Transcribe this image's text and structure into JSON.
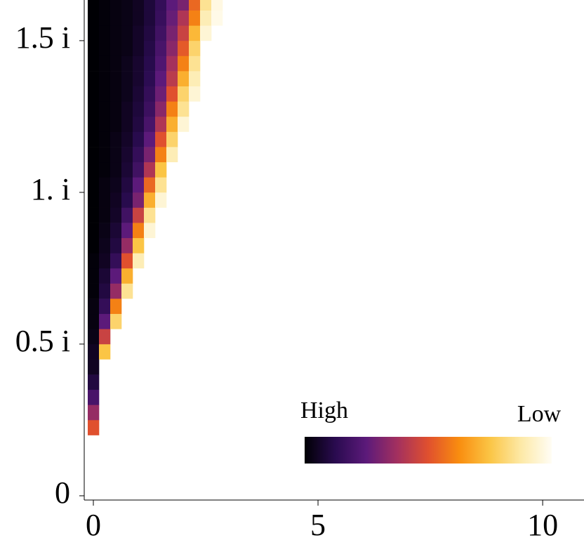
{
  "chart_data": {
    "type": "heatmap",
    "xlim": [
      -0.203,
      10.92
    ],
    "ylim": [
      -0.014,
      1.634
    ],
    "xticks": [
      0,
      5,
      10
    ],
    "yticks": [
      0,
      {
        "value": 0.5,
        "label": "0.5 i"
      },
      {
        "value": 1,
        "label": "1. i"
      },
      {
        "value": 1.5,
        "label": "1.5 i"
      }
    ],
    "x": [
      0,
      0.25,
      0.5,
      0.75,
      1,
      1.25,
      1.5,
      1.75,
      2,
      2.25,
      2.5,
      2.75
    ],
    "cell_width": 0.25,
    "cell_height": 0.05,
    "rows": [
      {
        "y": 0.225,
        "values": [
          0.5
        ]
      },
      {
        "y": 0.275,
        "values": [
          0.35
        ]
      },
      {
        "y": 0.325,
        "values": [
          0.2
        ]
      },
      {
        "y": 0.375,
        "values": [
          0.1
        ]
      },
      {
        "y": 0.425,
        "values": [
          0.05
        ]
      },
      {
        "y": 0.475,
        "values": [
          0.05,
          0.75
        ]
      },
      {
        "y": 0.525,
        "values": [
          0.03,
          0.45
        ]
      },
      {
        "y": 0.575,
        "values": [
          0.02,
          0.25,
          0.8
        ]
      },
      {
        "y": 0.625,
        "values": [
          0.02,
          0.15,
          0.6
        ]
      },
      {
        "y": 0.675,
        "values": [
          0.01,
          0.1,
          0.35,
          0.85
        ]
      },
      {
        "y": 0.725,
        "values": [
          0.01,
          0.08,
          0.25,
          0.7
        ]
      },
      {
        "y": 0.775,
        "values": [
          0.01,
          0.05,
          0.15,
          0.5,
          0.9
        ]
      },
      {
        "y": 0.825,
        "values": [
          0,
          0.04,
          0.1,
          0.35,
          0.75
        ]
      },
      {
        "y": 0.875,
        "values": [
          0,
          0.03,
          0.08,
          0.25,
          0.6,
          0.95
        ]
      },
      {
        "y": 0.925,
        "values": [
          0,
          0.02,
          0.06,
          0.18,
          0.45,
          0.85
        ]
      },
      {
        "y": 0.975,
        "values": [
          0,
          0.02,
          0.05,
          0.12,
          0.3,
          0.7,
          0.95
        ]
      },
      {
        "y": 1.025,
        "values": [
          0,
          0.02,
          0.04,
          0.1,
          0.25,
          0.55,
          0.85
        ]
      },
      {
        "y": 1.075,
        "values": [
          0,
          0.01,
          0.03,
          0.08,
          0.18,
          0.4,
          0.75
        ]
      },
      {
        "y": 1.125,
        "values": [
          0,
          0.01,
          0.03,
          0.07,
          0.15,
          0.3,
          0.6,
          0.9
        ]
      },
      {
        "y": 1.175,
        "values": [
          0,
          0.01,
          0.03,
          0.06,
          0.12,
          0.25,
          0.5,
          0.8
        ]
      },
      {
        "y": 1.225,
        "values": [
          0,
          0.01,
          0.02,
          0.05,
          0.1,
          0.2,
          0.4,
          0.7,
          0.95
        ]
      },
      {
        "y": 1.275,
        "values": [
          0,
          0.01,
          0.02,
          0.05,
          0.09,
          0.17,
          0.33,
          0.6,
          0.85
        ]
      },
      {
        "y": 1.325,
        "values": [
          0,
          0.01,
          0.02,
          0.04,
          0.08,
          0.15,
          0.28,
          0.5,
          0.8,
          0.95
        ]
      },
      {
        "y": 1.375,
        "values": [
          0,
          0.01,
          0.02,
          0.04,
          0.07,
          0.13,
          0.25,
          0.42,
          0.7,
          0.9
        ]
      },
      {
        "y": 1.425,
        "values": [
          0,
          0.01,
          0.02,
          0.04,
          0.07,
          0.12,
          0.22,
          0.38,
          0.6,
          0.85
        ]
      },
      {
        "y": 1.475,
        "values": [
          0,
          0.01,
          0.02,
          0.03,
          0.06,
          0.11,
          0.2,
          0.33,
          0.52,
          0.8
        ]
      },
      {
        "y": 1.525,
        "values": [
          0,
          0.01,
          0.02,
          0.03,
          0.06,
          0.1,
          0.18,
          0.3,
          0.45,
          0.72,
          0.95
        ]
      },
      {
        "y": 1.575,
        "values": [
          0,
          0.01,
          0.02,
          0.03,
          0.05,
          0.09,
          0.16,
          0.27,
          0.4,
          0.6,
          0.9,
          0.98
        ]
      },
      {
        "y": 1.625,
        "values": [
          0,
          0.01,
          0.02,
          0.03,
          0.05,
          0.09,
          0.15,
          0.25,
          0.3,
          0.55,
          0.85,
          0.97
        ]
      }
    ],
    "colorbar": {
      "high_label": "High",
      "low_label": "Low",
      "colors": [
        "#000004",
        "#2a0b50",
        "#5c1a7a",
        "#a3305f",
        "#e0502e",
        "#f98d0f",
        "#fbc545",
        "#fde9a6",
        "#fffdf5"
      ]
    }
  }
}
